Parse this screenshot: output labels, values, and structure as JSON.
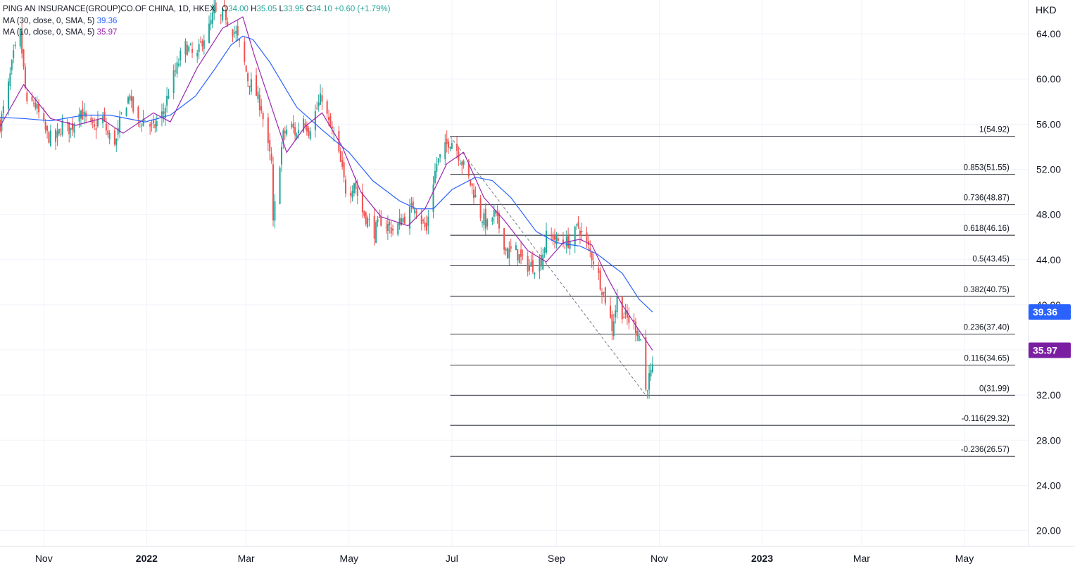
{
  "legend": {
    "symbol": "PING AN INSURANCE(GROUP)CO.OF CHINA, 1D, HKEX",
    "open_label": "O",
    "open_value": "34.00",
    "high_label": "H",
    "high_value": "35.05",
    "low_label": "L",
    "low_value": "33.95",
    "close_label": "C",
    "close_value": "34.10",
    "change": "+0.60 (+1.79%)",
    "ma30_label": "MA (30, close, 0, SMA, 5)",
    "ma30_value": "39.36",
    "ma10_label": "MA (10, close, 0, SMA, 5)",
    "ma10_value": "35.97"
  },
  "colors": {
    "up": "#26a69a",
    "down": "#ef5350",
    "ma30": "#2962ff",
    "ma10": "#9c27b0",
    "grid": "#f0f3fa",
    "fib_line": "#131722",
    "text": "#131722"
  },
  "chart_data": {
    "type": "candlestick",
    "currency": "HKD",
    "y_ticks": [
      "20.00",
      "24.00",
      "28.00",
      "32.00",
      "36.00",
      "40.00",
      "44.00",
      "48.00",
      "52.00",
      "56.00",
      "60.00",
      "64.00"
    ],
    "ylim": [
      18.6,
      67.0
    ],
    "x_ticks": [
      {
        "label": "Nov",
        "date": "2021-11-01",
        "bold": false
      },
      {
        "label": "2022",
        "date": "2022-01-01",
        "bold": true
      },
      {
        "label": "Mar",
        "date": "2022-03-01",
        "bold": false
      },
      {
        "label": "May",
        "date": "2022-05-01",
        "bold": false
      },
      {
        "label": "Jul",
        "date": "2022-07-01",
        "bold": false
      },
      {
        "label": "Sep",
        "date": "2022-09-01",
        "bold": false
      },
      {
        "label": "Nov",
        "date": "2022-11-01",
        "bold": false
      },
      {
        "label": "2023",
        "date": "2023-01-01",
        "bold": true
      },
      {
        "label": "Mar",
        "date": "2023-03-01",
        "bold": false
      },
      {
        "label": "May",
        "date": "2023-05-01",
        "bold": false
      }
    ],
    "xlim": [
      "2021-10-06",
      "2023-06-08"
    ],
    "price_anchors": [
      [
        "2021-10-06",
        56.0
      ],
      [
        "2021-10-10",
        58.5
      ],
      [
        "2021-10-14",
        62.0
      ],
      [
        "2021-10-18",
        64.0
      ],
      [
        "2021-10-22",
        57.5
      ],
      [
        "2021-10-26",
        58.0
      ],
      [
        "2021-10-30",
        56.5
      ],
      [
        "2021-11-03",
        55.0
      ],
      [
        "2021-11-08",
        54.5
      ],
      [
        "2021-11-12",
        56.0
      ],
      [
        "2021-11-17",
        55.5
      ],
      [
        "2021-11-22",
        57.5
      ],
      [
        "2021-11-27",
        56.0
      ],
      [
        "2021-12-01",
        55.5
      ],
      [
        "2021-12-05",
        57.0
      ],
      [
        "2021-12-09",
        55.0
      ],
      [
        "2021-12-14",
        54.5
      ],
      [
        "2021-12-18",
        57.5
      ],
      [
        "2021-12-22",
        58.5
      ],
      [
        "2021-12-26",
        56.0
      ],
      [
        "2021-12-31",
        56.5
      ],
      [
        "2022-01-05",
        55.5
      ],
      [
        "2022-01-08",
        56.5
      ],
      [
        "2022-01-11",
        57.0
      ],
      [
        "2022-01-15",
        59.5
      ],
      [
        "2022-01-19",
        61.0
      ],
      [
        "2022-01-23",
        63.0
      ],
      [
        "2022-01-27",
        62.5
      ],
      [
        "2022-01-30",
        61.5
      ],
      [
        "2022-02-03",
        63.5
      ],
      [
        "2022-02-07",
        64.5
      ],
      [
        "2022-02-10",
        66.0
      ],
      [
        "2022-02-13",
        65.0
      ],
      [
        "2022-02-16",
        66.0
      ],
      [
        "2022-02-20",
        64.5
      ],
      [
        "2022-02-23",
        64.0
      ],
      [
        "2022-02-27",
        62.0
      ],
      [
        "2022-03-02",
        60.0
      ],
      [
        "2022-03-06",
        59.0
      ],
      [
        "2022-03-10",
        57.5
      ],
      [
        "2022-03-13",
        54.5
      ],
      [
        "2022-03-16",
        52.5
      ],
      [
        "2022-03-17",
        47.0
      ],
      [
        "2022-03-19",
        50.5
      ],
      [
        "2022-03-23",
        55.0
      ],
      [
        "2022-03-27",
        56.0
      ],
      [
        "2022-03-31",
        55.0
      ],
      [
        "2022-04-03",
        57.0
      ],
      [
        "2022-04-07",
        55.5
      ],
      [
        "2022-04-11",
        57.0
      ],
      [
        "2022-04-15",
        58.5
      ],
      [
        "2022-04-19",
        56.0
      ],
      [
        "2022-04-22",
        55.0
      ],
      [
        "2022-04-26",
        52.5
      ],
      [
        "2022-04-30",
        49.5
      ],
      [
        "2022-05-04",
        51.0
      ],
      [
        "2022-05-08",
        48.5
      ],
      [
        "2022-05-12",
        47.5
      ],
      [
        "2022-05-16",
        46.5
      ],
      [
        "2022-05-20",
        47.5
      ],
      [
        "2022-05-24",
        47.0
      ],
      [
        "2022-05-28",
        46.5
      ],
      [
        "2022-06-01",
        47.5
      ],
      [
        "2022-06-05",
        48.0
      ],
      [
        "2022-06-09",
        49.0
      ],
      [
        "2022-06-13",
        47.5
      ],
      [
        "2022-06-16",
        46.5
      ],
      [
        "2022-06-18",
        49.5
      ],
      [
        "2022-06-22",
        52.5
      ],
      [
        "2022-06-26",
        53.5
      ],
      [
        "2022-06-29",
        54.5
      ],
      [
        "2022-07-02",
        54.5
      ],
      [
        "2022-07-06",
        53.0
      ],
      [
        "2022-07-10",
        51.5
      ],
      [
        "2022-07-14",
        50.0
      ],
      [
        "2022-07-18",
        48.0
      ],
      [
        "2022-07-22",
        47.0
      ],
      [
        "2022-07-26",
        48.0
      ],
      [
        "2022-07-30",
        46.5
      ],
      [
        "2022-08-03",
        44.5
      ],
      [
        "2022-08-07",
        45.0
      ],
      [
        "2022-08-11",
        44.0
      ],
      [
        "2022-08-15",
        43.5
      ],
      [
        "2022-08-19",
        43.5
      ],
      [
        "2022-08-23",
        44.0
      ],
      [
        "2022-08-26",
        46.0
      ],
      [
        "2022-08-30",
        46.0
      ],
      [
        "2022-09-03",
        45.5
      ],
      [
        "2022-09-07",
        45.5
      ],
      [
        "2022-09-11",
        46.0
      ],
      [
        "2022-09-14",
        47.0
      ],
      [
        "2022-09-17",
        46.0
      ],
      [
        "2022-09-20",
        45.0
      ],
      [
        "2022-09-23",
        44.0
      ],
      [
        "2022-09-27",
        42.0
      ],
      [
        "2022-10-01",
        40.0
      ],
      [
        "2022-10-04",
        38.0
      ],
      [
        "2022-10-07",
        40.5
      ],
      [
        "2022-10-11",
        39.0
      ],
      [
        "2022-10-15",
        38.5
      ],
      [
        "2022-10-18",
        38.0
      ],
      [
        "2022-10-21",
        37.0
      ],
      [
        "2022-10-23",
        36.0
      ],
      [
        "2022-10-24",
        32.4
      ],
      [
        "2022-10-25",
        33.0
      ],
      [
        "2022-10-26",
        33.5
      ],
      [
        "2022-10-27",
        33.8
      ],
      [
        "2022-10-28",
        34.1
      ]
    ],
    "ma30_anchors": [
      [
        "2021-10-06",
        56.6
      ],
      [
        "2021-10-20",
        56.5
      ],
      [
        "2021-11-05",
        56.3
      ],
      [
        "2021-11-25",
        56.8
      ],
      [
        "2021-12-10",
        56.8
      ],
      [
        "2021-12-31",
        56.2
      ],
      [
        "2022-01-15",
        56.8
      ],
      [
        "2022-01-30",
        58.5
      ],
      [
        "2022-02-10",
        60.8
      ],
      [
        "2022-02-20",
        63.0
      ],
      [
        "2022-02-27",
        63.8
      ],
      [
        "2022-03-05",
        63.5
      ],
      [
        "2022-03-15",
        61.5
      ],
      [
        "2022-03-31",
        57.5
      ],
      [
        "2022-04-15",
        55.5
      ],
      [
        "2022-05-01",
        53.5
      ],
      [
        "2022-05-15",
        51.0
      ],
      [
        "2022-05-31",
        49.2
      ],
      [
        "2022-06-10",
        48.5
      ],
      [
        "2022-06-20",
        48.5
      ],
      [
        "2022-07-01",
        50.2
      ],
      [
        "2022-07-15",
        51.3
      ],
      [
        "2022-07-25",
        51.0
      ],
      [
        "2022-08-05",
        49.5
      ],
      [
        "2022-08-20",
        46.5
      ],
      [
        "2022-09-01",
        45.5
      ],
      [
        "2022-09-15",
        45.2
      ],
      [
        "2022-09-25",
        44.5
      ],
      [
        "2022-10-10",
        42.8
      ],
      [
        "2022-10-20",
        40.5
      ],
      [
        "2022-10-28",
        39.36
      ]
    ],
    "ma10_anchors": [
      [
        "2021-10-06",
        55.8
      ],
      [
        "2021-10-20",
        59.5
      ],
      [
        "2021-11-05",
        56.5
      ],
      [
        "2021-11-20",
        55.9
      ],
      [
        "2021-12-05",
        56.5
      ],
      [
        "2021-12-18",
        55.2
      ],
      [
        "2022-01-05",
        57.0
      ],
      [
        "2022-01-15",
        56.2
      ],
      [
        "2022-01-31",
        61.0
      ],
      [
        "2022-02-15",
        64.5
      ],
      [
        "2022-02-27",
        65.5
      ],
      [
        "2022-03-06",
        62.0
      ],
      [
        "2022-03-15",
        58.0
      ],
      [
        "2022-03-25",
        53.5
      ],
      [
        "2022-04-05",
        55.8
      ],
      [
        "2022-04-15",
        57.0
      ],
      [
        "2022-04-27",
        54.0
      ],
      [
        "2022-05-08",
        50.0
      ],
      [
        "2022-05-20",
        47.8
      ],
      [
        "2022-06-05",
        47.0
      ],
      [
        "2022-06-15",
        48.5
      ],
      [
        "2022-06-28",
        52.5
      ],
      [
        "2022-07-08",
        53.5
      ],
      [
        "2022-07-20",
        49.5
      ],
      [
        "2022-08-01",
        47.5
      ],
      [
        "2022-08-15",
        44.8
      ],
      [
        "2022-08-26",
        43.8
      ],
      [
        "2022-09-05",
        45.5
      ],
      [
        "2022-09-15",
        45.8
      ],
      [
        "2022-09-22",
        45.3
      ],
      [
        "2022-10-01",
        42.5
      ],
      [
        "2022-10-10",
        40.0
      ],
      [
        "2022-10-18",
        38.2
      ],
      [
        "2022-10-28",
        35.97
      ]
    ],
    "fib_start_date": "2022-06-30",
    "fib_end_date": "2022-10-28",
    "fib_axis_end_date": "2023-05-31",
    "fib_levels": [
      {
        "label": "1(54.92)",
        "value": 54.92
      },
      {
        "label": "0.853(51.55)",
        "value": 51.55
      },
      {
        "label": "0.736(48.87)",
        "value": 48.87
      },
      {
        "label": "0.618(46.16)",
        "value": 46.16
      },
      {
        "label": "0.5(43.45)",
        "value": 43.45
      },
      {
        "label": "0.382(40.75)",
        "value": 40.75
      },
      {
        "label": "0.236(37.40)",
        "value": 37.4
      },
      {
        "label": "0.116(34.65)",
        "value": 34.65
      },
      {
        "label": "0(31.99)",
        "value": 31.99
      },
      {
        "label": "-0.116(29.32)",
        "value": 29.32
      },
      {
        "label": "-0.236(26.57)",
        "value": 26.57
      }
    ],
    "trendline": {
      "from": [
        "2022-06-30",
        54.92
      ],
      "to": [
        "2022-10-24",
        31.99
      ]
    },
    "badges": [
      {
        "value": 39.36,
        "label": "39.36",
        "color": "#2962ff"
      },
      {
        "value": 35.97,
        "label": "35.97",
        "color": "#7b1fa2"
      }
    ]
  }
}
